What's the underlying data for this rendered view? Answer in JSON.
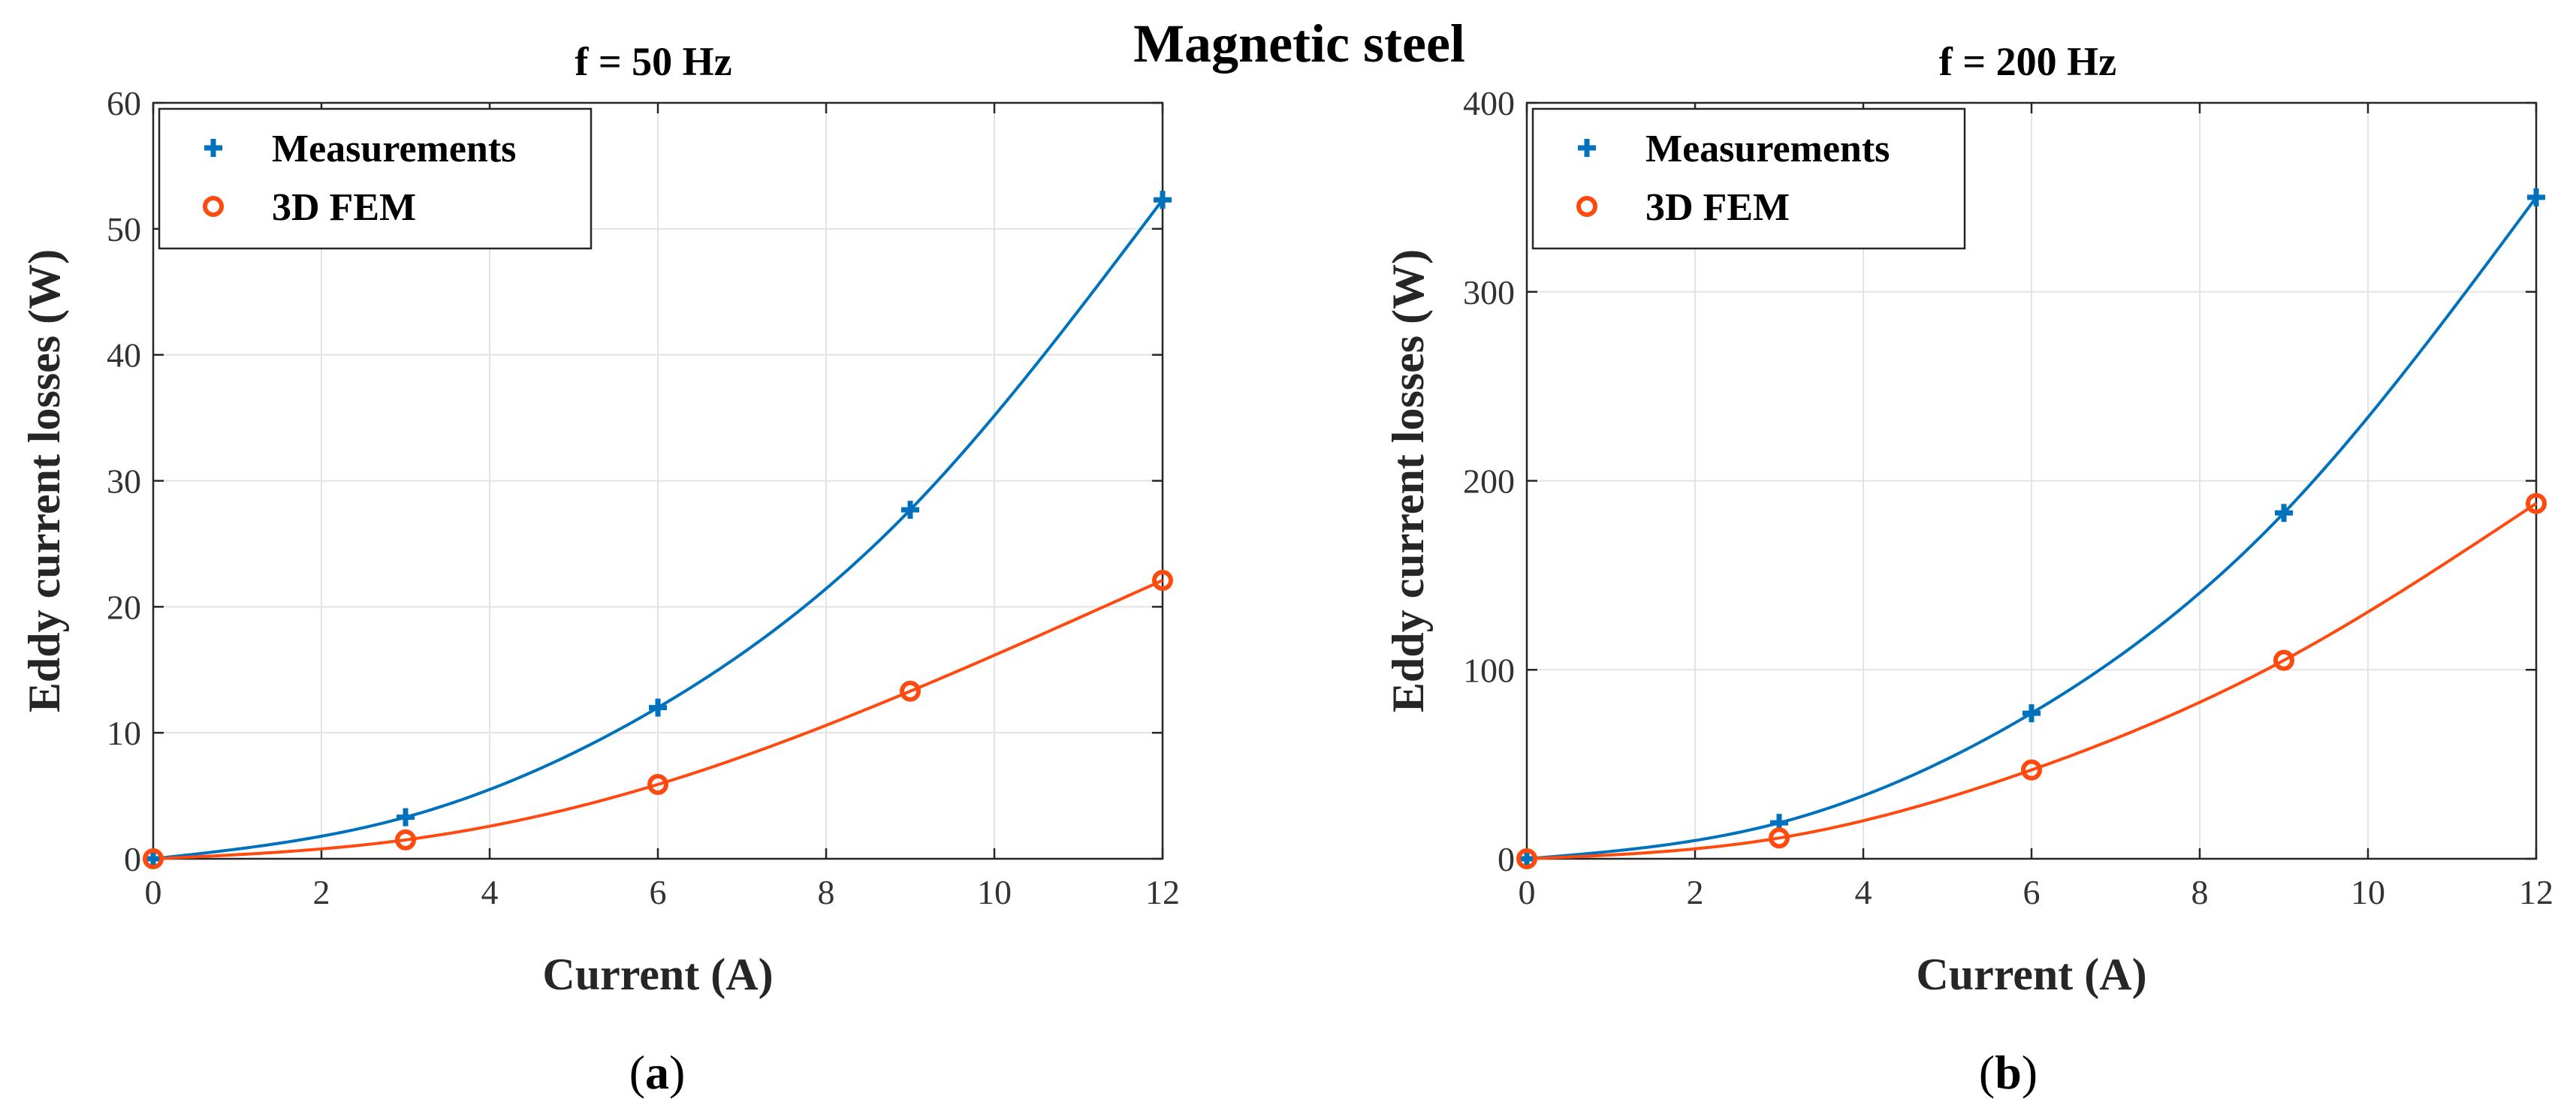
{
  "figure_title": "Magnetic steel",
  "colors": {
    "measurements": "#0072BD",
    "fem": "#FF4A0F",
    "grid": "#E3E3E3",
    "axis": "#262626"
  },
  "chart_data": [
    {
      "type": "scatter",
      "panel_letter": "a",
      "title": "f = 50 Hz",
      "xlabel": "Current (A)",
      "ylabel": "Eddy current losses (W)",
      "xlim": [
        0,
        12
      ],
      "ylim": [
        0,
        60
      ],
      "xticks": [
        0,
        2,
        4,
        6,
        8,
        10,
        12
      ],
      "yticks": [
        0,
        10,
        20,
        30,
        40,
        50,
        60
      ],
      "grid": true,
      "legend_position": "top-left",
      "x": [
        0,
        3,
        6,
        9,
        12
      ],
      "series": [
        {
          "name": "Measurements",
          "marker": "plus",
          "values": [
            0,
            3.3,
            12.0,
            27.7,
            52.3
          ]
        },
        {
          "name": "3D FEM",
          "marker": "circle",
          "values": [
            0,
            1.5,
            5.9,
            13.3,
            22.1
          ]
        }
      ]
    },
    {
      "type": "scatter",
      "panel_letter": "b",
      "title": "f = 200 Hz",
      "xlabel": "Current (A)",
      "ylabel": "Eddy current losses (W)",
      "xlim": [
        0,
        12
      ],
      "ylim": [
        0,
        400
      ],
      "xticks": [
        0,
        2,
        4,
        6,
        8,
        10,
        12
      ],
      "yticks": [
        0,
        100,
        200,
        300,
        400
      ],
      "grid": true,
      "legend_position": "top-left",
      "x": [
        0,
        3,
        6,
        9,
        12
      ],
      "series": [
        {
          "name": "Measurements",
          "marker": "plus",
          "values": [
            0,
            19.0,
            77.0,
            183.0,
            350.0
          ]
        },
        {
          "name": "3D FEM",
          "marker": "circle",
          "values": [
            0,
            11.0,
            47.0,
            105.0,
            188.0
          ]
        }
      ]
    }
  ]
}
